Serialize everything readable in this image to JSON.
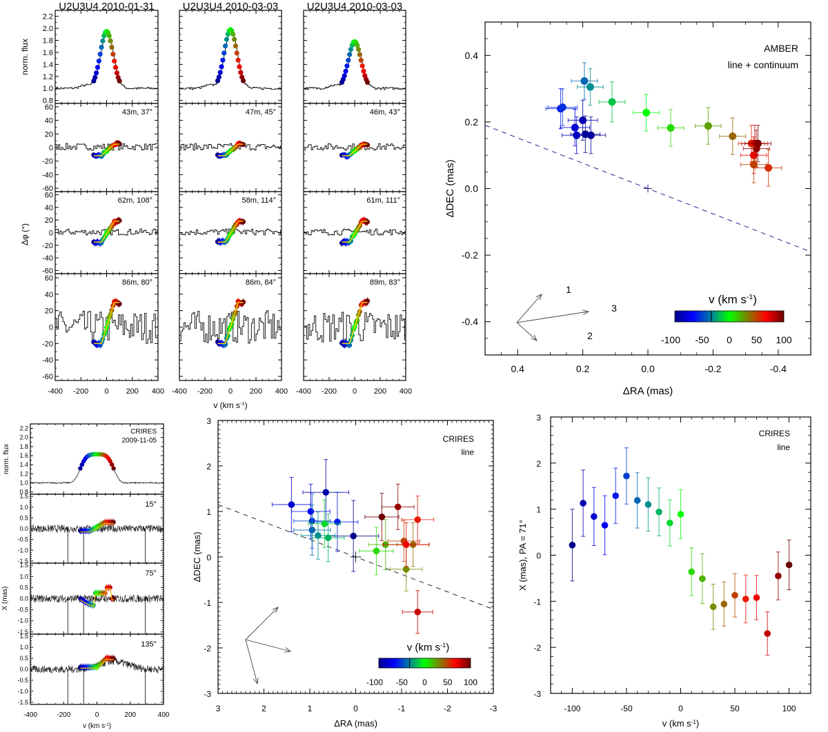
{
  "figure": {
    "colorbar": {
      "label": "v (km s-1)",
      "ticks": [
        -100,
        -50,
        0,
        50,
        100
      ],
      "range": [
        -100,
        100
      ],
      "colors": [
        "#00008b",
        "#0000ff",
        "#0080a0",
        "#00ff00",
        "#808000",
        "#ff0000",
        "#6b0000"
      ]
    }
  },
  "chart_data": [
    {
      "id": "amber-spectra-grid",
      "type": "line",
      "columns": [
        {
          "title": "U2U3U4 2010-01-31",
          "baselines": [
            {
              "label": "43m,  37°"
            },
            {
              "label": "62m,  108°"
            },
            {
              "label": "86m,  80°"
            }
          ]
        },
        {
          "title": "U2U3U4 2010-03-03",
          "baselines": [
            {
              "label": "47m,  45°"
            },
            {
              "label": "58m,  114°"
            },
            {
              "label": "86m,  84°"
            }
          ]
        },
        {
          "title": "U2U3U4 2010-03-03",
          "baselines": [
            {
              "label": "46m,  43°"
            },
            {
              "label": "61m,  111°"
            },
            {
              "label": "89m,  83°"
            }
          ]
        }
      ],
      "flux_ylabel": "norm. flux",
      "flux_yticks": [
        0.8,
        1.0,
        1.2,
        1.4,
        1.6,
        1.8,
        2.0,
        2.2
      ],
      "flux_ylim": [
        0.75,
        2.3
      ],
      "phase_ylabel": "Δφ (°)",
      "phase_yticks": [
        -60,
        -40,
        -20,
        0,
        20,
        40,
        60
      ],
      "phase_ylim": [
        -65,
        65
      ],
      "xlabel": "v (km s-1)",
      "xticks": [
        -400,
        -200,
        0,
        200,
        400
      ],
      "xlim": [
        -400,
        400
      ],
      "flux_peak": [
        1.97,
        2.0,
        1.8
      ],
      "phase_amplitude": [
        [
          -12,
          5
        ],
        [
          -15,
          18
        ],
        [
          -20,
          30
        ]
      ],
      "line_velocities": [
        -100,
        -90,
        -80,
        -70,
        -60,
        -50,
        -40,
        -30,
        -20,
        -10,
        0,
        10,
        20,
        30,
        40,
        50,
        60,
        70,
        80,
        90,
        100
      ]
    },
    {
      "id": "amber-photocenter",
      "type": "scatter",
      "title": "",
      "annotation": [
        "AMBER",
        "line + continuum"
      ],
      "xlabel": "ΔRA (mas)",
      "ylabel": "ΔDEC (mas)",
      "xlim": [
        0.5,
        -0.5
      ],
      "ylim": [
        -0.5,
        0.5
      ],
      "xticks": [
        0.4,
        0.2,
        0.0,
        -0.2,
        -0.4
      ],
      "yticks": [
        -0.4,
        -0.2,
        0.0,
        0.2,
        0.4
      ],
      "baseline_arrows": [
        "1",
        "2",
        "3"
      ],
      "points": [
        {
          "v": -100,
          "ra": 0.192,
          "dec": 0.163,
          "err_ra": 0.045,
          "err_dec": 0.055
        },
        {
          "v": -95,
          "ra": 0.175,
          "dec": 0.16,
          "err_ra": 0.045,
          "err_dec": 0.055
        },
        {
          "v": -90,
          "ra": 0.2,
          "dec": 0.205,
          "err_ra": 0.045,
          "err_dec": 0.06
        },
        {
          "v": -85,
          "ra": 0.219,
          "dec": 0.16,
          "err_ra": 0.045,
          "err_dec": 0.055
        },
        {
          "v": -80,
          "ra": 0.224,
          "dec": 0.183,
          "err_ra": 0.045,
          "err_dec": 0.055
        },
        {
          "v": -60,
          "ra": 0.268,
          "dec": 0.24,
          "err_ra": 0.045,
          "err_dec": 0.06
        },
        {
          "v": -55,
          "ra": 0.262,
          "dec": 0.244,
          "err_ra": 0.045,
          "err_dec": 0.055
        },
        {
          "v": -40,
          "ra": 0.195,
          "dec": 0.323,
          "err_ra": 0.04,
          "err_dec": 0.055
        },
        {
          "v": -30,
          "ra": 0.177,
          "dec": 0.305,
          "err_ra": 0.04,
          "err_dec": 0.055
        },
        {
          "v": -15,
          "ra": 0.11,
          "dec": 0.26,
          "err_ra": 0.04,
          "err_dec": 0.06
        },
        {
          "v": 0,
          "ra": 0.005,
          "dec": 0.228,
          "err_ra": 0.04,
          "err_dec": 0.055
        },
        {
          "v": 10,
          "ra": -0.07,
          "dec": 0.182,
          "err_ra": 0.04,
          "err_dec": 0.055
        },
        {
          "v": 25,
          "ra": -0.185,
          "dec": 0.188,
          "err_ra": 0.04,
          "err_dec": 0.055
        },
        {
          "v": 40,
          "ra": -0.26,
          "dec": 0.157,
          "err_ra": 0.04,
          "err_dec": 0.055
        },
        {
          "v": 60,
          "ra": -0.318,
          "dec": 0.135,
          "err_ra": 0.04,
          "err_dec": 0.055
        },
        {
          "v": 70,
          "ra": -0.325,
          "dec": 0.1,
          "err_ra": 0.04,
          "err_dec": 0.055
        },
        {
          "v": 80,
          "ra": -0.328,
          "dec": 0.135,
          "err_ra": 0.04,
          "err_dec": 0.055
        },
        {
          "v": 90,
          "ra": -0.333,
          "dec": 0.12,
          "err_ra": 0.04,
          "err_dec": 0.055
        },
        {
          "v": 95,
          "ra": -0.338,
          "dec": 0.135,
          "err_ra": 0.04,
          "err_dec": 0.055
        },
        {
          "v": 50,
          "ra": -0.325,
          "dec": 0.072,
          "err_ra": 0.04,
          "err_dec": 0.055
        },
        {
          "v": 55,
          "ra": -0.37,
          "dec": 0.062,
          "err_ra": 0.04,
          "err_dec": 0.055
        }
      ],
      "fit_line": {
        "from": [
          0.5,
          0.19
        ],
        "to": [
          -0.5,
          -0.19
        ]
      }
    },
    {
      "id": "crires-spectra",
      "type": "line",
      "annotation": [
        "CRIRES",
        "2009-11-05"
      ],
      "flux_ylabel": "norm. flux",
      "flux_yticks": [
        0.8,
        1.0,
        1.2,
        1.4,
        1.6,
        1.8,
        2.0,
        2.2
      ],
      "flux_ylim": [
        0.75,
        2.3
      ],
      "x_ylabel": "X (mas)",
      "x_yticks": [
        -1.5,
        -1.0,
        -0.5,
        0.0,
        0.5,
        1.0,
        1.5
      ],
      "x_ylim": [
        -1.6,
        1.6
      ],
      "panels": [
        {
          "label": "15°"
        },
        {
          "label": "75°"
        },
        {
          "label": "135°"
        }
      ],
      "xlabel": "v (km s-1)",
      "xticks": [
        -400,
        -200,
        0,
        200,
        400
      ],
      "xlim": [
        -400,
        400
      ],
      "flux_peak": 1.65
    },
    {
      "id": "crires-photocenter",
      "type": "scatter",
      "annotation": [
        "CRIRES",
        "line"
      ],
      "xlabel": "ΔRA (mas)",
      "ylabel": "ΔDEC (mas)",
      "xlim": [
        3,
        -3
      ],
      "ylim": [
        -3,
        3
      ],
      "xticks": [
        3,
        2,
        1,
        0,
        -1,
        -2,
        -3
      ],
      "yticks": [
        -3,
        -2,
        -1,
        0,
        1,
        2,
        3
      ],
      "points": [
        {
          "v": -100,
          "ra": 0.05,
          "dec": 0.46,
          "err_ra": 0.55,
          "err_dec": 0.78
        },
        {
          "v": -90,
          "ra": 0.65,
          "dec": 1.42,
          "err_ra": 0.5,
          "err_dec": 0.72
        },
        {
          "v": -80,
          "ra": 1.4,
          "dec": 1.15,
          "err_ra": 0.42,
          "err_dec": 0.6
        },
        {
          "v": -70,
          "ra": 0.98,
          "dec": 1.0,
          "err_ra": 0.42,
          "err_dec": 0.6
        },
        {
          "v": -60,
          "ra": 0.4,
          "dec": 0.77,
          "err_ra": 0.45,
          "err_dec": 0.65
        },
        {
          "v": -50,
          "ra": 0.95,
          "dec": 0.79,
          "err_ra": 0.4,
          "err_dec": 0.6
        },
        {
          "v": -40,
          "ra": 0.95,
          "dec": 0.59,
          "err_ra": 0.4,
          "err_dec": 0.55
        },
        {
          "v": -30,
          "ra": 0.82,
          "dec": 0.47,
          "err_ra": 0.37,
          "err_dec": 0.52
        },
        {
          "v": -20,
          "ra": 0.6,
          "dec": 0.42,
          "err_ra": 0.35,
          "err_dec": 0.52
        },
        {
          "v": -10,
          "ra": 0.68,
          "dec": 0.73,
          "err_ra": 0.35,
          "err_dec": 0.52
        },
        {
          "v": 10,
          "ra": -0.45,
          "dec": 0.13,
          "err_ra": 0.37,
          "err_dec": 0.52
        },
        {
          "v": 20,
          "ra": -0.65,
          "dec": 0.27,
          "err_ra": 0.37,
          "err_dec": 0.55
        },
        {
          "v": 30,
          "ra": -1.1,
          "dec": -0.27,
          "err_ra": 0.35,
          "err_dec": 0.48
        },
        {
          "v": 40,
          "ra": -1.25,
          "dec": 0.27,
          "err_ra": 0.35,
          "err_dec": 0.48
        },
        {
          "v": 50,
          "ra": -1.05,
          "dec": 0.35,
          "err_ra": 0.35,
          "err_dec": 0.45
        },
        {
          "v": 60,
          "ra": -1.35,
          "dec": 0.82,
          "err_ra": 0.35,
          "err_dec": 0.52
        },
        {
          "v": 70,
          "ra": -1.1,
          "dec": 0.27,
          "err_ra": 0.5,
          "err_dec": 0.48
        },
        {
          "v": 80,
          "ra": -1.35,
          "dec": -1.21,
          "err_ra": 0.33,
          "err_dec": 0.47
        },
        {
          "v": 90,
          "ra": -0.92,
          "dec": 1.1,
          "err_ra": 0.35,
          "err_dec": 0.5
        },
        {
          "v": 100,
          "ra": -0.57,
          "dec": 0.88,
          "err_ra": 0.37,
          "err_dec": 0.52
        }
      ],
      "fit_line": {
        "from": [
          3,
          1.15
        ],
        "to": [
          -3,
          -1.15
        ]
      }
    },
    {
      "id": "crires-position-velocity",
      "type": "scatter",
      "annotation": [
        "CRIRES",
        "line"
      ],
      "xlabel": "v (km s-1)",
      "ylabel": "X (mas), PA = 71°",
      "xlim": [
        -120,
        120
      ],
      "ylim": [
        -3,
        3
      ],
      "xticks": [
        -100,
        -50,
        0,
        50,
        100
      ],
      "yticks": [
        -3,
        -2,
        -1,
        0,
        1,
        2,
        3
      ],
      "x": [
        -100,
        -90,
        -80,
        -70,
        -60,
        -50,
        -40,
        -30,
        -20,
        -10,
        0,
        10,
        20,
        30,
        40,
        50,
        60,
        70,
        80,
        90,
        100
      ],
      "y": [
        0.22,
        1.13,
        0.84,
        0.65,
        1.29,
        1.72,
        1.19,
        1.1,
        0.94,
        0.7,
        0.89,
        -0.36,
        -0.51,
        -1.12,
        -1.06,
        -0.87,
        -0.95,
        -0.92,
        -1.7,
        -0.45,
        -0.21
      ],
      "err": [
        0.78,
        0.72,
        0.63,
        0.64,
        0.6,
        0.61,
        0.6,
        0.58,
        0.52,
        0.5,
        0.53,
        0.52,
        0.54,
        0.49,
        0.48,
        0.47,
        0.52,
        0.48,
        0.47,
        0.52,
        0.54
      ]
    }
  ]
}
